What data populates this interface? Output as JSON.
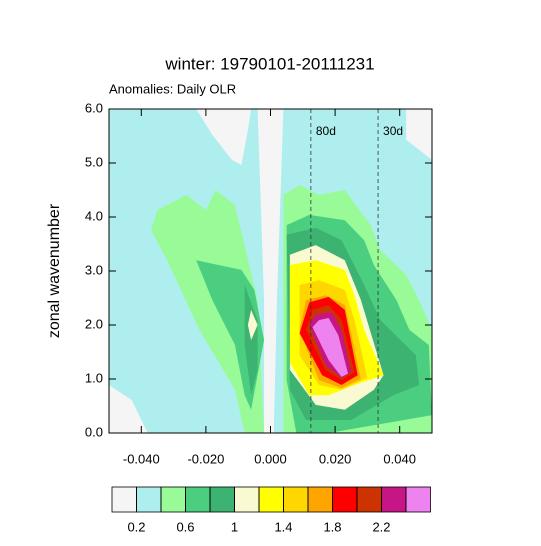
{
  "chart_data": {
    "type": "contour",
    "title": "winter: 19790101-20111231",
    "subtitle": "Anomalies: Daily OLR",
    "y_label": "zonal wavenumber",
    "xlim": [
      -0.05,
      0.05
    ],
    "ylim": [
      0,
      6
    ],
    "xticks": [
      {
        "value": -0.04,
        "label": "-0.040"
      },
      {
        "value": -0.02,
        "label": "-0.020"
      },
      {
        "value": 0,
        "label": "0.000"
      },
      {
        "value": 0.02,
        "label": "0.020"
      },
      {
        "value": 0.04,
        "label": "0.040"
      }
    ],
    "yticks": [
      {
        "value": 0,
        "label": "0.0"
      },
      {
        "value": 1,
        "label": "1.0"
      },
      {
        "value": 2,
        "label": "2.0"
      },
      {
        "value": 3,
        "label": "3.0"
      },
      {
        "value": 4,
        "label": "4.0"
      },
      {
        "value": 5,
        "label": "5.0"
      },
      {
        "value": 6,
        "label": "6.0"
      }
    ],
    "colors": [
      "#f5f5f5",
      "#afeeee",
      "#98fb98",
      "#4cce80",
      "#3cb371",
      "#fafad2",
      "#ffff00",
      "#ffd700",
      "#ffa500",
      "#ff0000",
      "#cc3300",
      "#c71585",
      "#ee82ee"
    ],
    "levels": [
      0.2,
      0.4,
      0.6,
      0.8,
      1,
      1.2,
      1.4,
      1.6,
      1.8,
      2,
      2.2,
      2.4
    ],
    "colorbar_ticks": [
      0.2,
      0.6,
      1,
      1.4,
      1.8,
      2.2
    ],
    "contours": [
      {
        "level": 1,
        "x": [
          -0.05,
          0.05,
          0.05,
          -0.05
        ],
        "y": [
          0,
          0,
          6,
          6
        ]
      },
      {
        "level": 0,
        "x": [
          -0.023,
          -0.018,
          -0.012,
          -0.009,
          -0.007,
          -0.006
        ],
        "y": [
          6,
          5.52,
          5.06,
          4.96,
          5.61,
          6
        ]
      },
      {
        "level": 0,
        "x": [
          -0.004,
          0.004,
          0.002,
          0.001,
          -0.002,
          -0.002
        ],
        "y": [
          6,
          6,
          2.46,
          0,
          0,
          2.46
        ]
      },
      {
        "level": 0,
        "x": [
          0.042,
          0.042,
          0.05,
          0.05
        ],
        "y": [
          6,
          5.43,
          5.06,
          6
        ]
      },
      {
        "level": 0,
        "x": [
          -0.05,
          -0.043,
          -0.038,
          -0.05
        ],
        "y": [
          0.89,
          0.61,
          0,
          0
        ]
      },
      {
        "level": 2,
        "x": [
          -0.035,
          -0.026,
          -0.02,
          -0.017,
          -0.011,
          -0.004,
          -0.002,
          -0.008,
          -0.011,
          -0.022,
          -0.032,
          -0.037
        ],
        "y": [
          4.13,
          4.41,
          4.13,
          4.5,
          4.22,
          2.46,
          0,
          0,
          0.8,
          1.91,
          3.2,
          3.76
        ]
      },
      {
        "level": 3,
        "x": [
          -0.023,
          -0.009,
          -0.005,
          -0.002,
          -0.006,
          -0.008,
          -0.011,
          -0.018
        ],
        "y": [
          3.2,
          3.02,
          2.65,
          1.72,
          0.43,
          0.7,
          1.63,
          2.46
        ]
      },
      {
        "level": 4,
        "x": [
          -0.008,
          -0.004,
          -0.004,
          -0.006,
          -0.008
        ],
        "y": [
          2.74,
          2.09,
          1.17,
          0.7,
          1.63
        ]
      },
      {
        "level": 5,
        "x": [
          -0.006,
          -0.004,
          -0.006,
          -0.007
        ],
        "y": [
          2.28,
          2,
          1.72,
          2
        ]
      },
      {
        "level": 2,
        "x": [
          0.004,
          0.009,
          0.015,
          0.023,
          0.031,
          0.034,
          0.042,
          0.046,
          0.05,
          0.05,
          0.004
        ],
        "y": [
          4.41,
          4.59,
          4.41,
          4.5,
          3.85,
          3.39,
          2.93,
          2.46,
          1.91,
          0,
          0
        ]
      },
      {
        "level": 3,
        "x": [
          0.005,
          0.012,
          0.023,
          0.029,
          0.032,
          0.039,
          0.043,
          0.049,
          0.05,
          0.018,
          0.008,
          0.005
        ],
        "y": [
          3.85,
          4.04,
          3.94,
          3.57,
          3.11,
          2.46,
          1.91,
          1.63,
          0.33,
          0,
          0,
          0.98
        ]
      },
      {
        "level": 4,
        "x": [
          0.005,
          0.014,
          0.022,
          0.029,
          0.034,
          0.045,
          0.046,
          0.038,
          0.025,
          0.011,
          0.006
        ],
        "y": [
          3.67,
          3.8,
          3.57,
          2.74,
          2.09,
          1.44,
          0.89,
          0.7,
          0.24,
          0.24,
          0.8
        ]
      },
      {
        "level": 5,
        "x": [
          0.006,
          0.014,
          0.023,
          0.028,
          0.035,
          0.032,
          0.023,
          0.014,
          0.006
        ],
        "y": [
          3.3,
          3.48,
          3.2,
          2.46,
          1.07,
          0.8,
          0.43,
          0.52,
          1.17
        ]
      },
      {
        "level": 6,
        "x": [
          0.006,
          0.014,
          0.023,
          0.026,
          0.029,
          0.035,
          0.026,
          0.018,
          0.012,
          0.006
        ],
        "y": [
          3.11,
          3.2,
          3.02,
          2.55,
          1.91,
          1.07,
          0.89,
          0.7,
          0.7,
          1.3
        ]
      },
      {
        "level": 7,
        "x": [
          0.009,
          0.015,
          0.023,
          0.026,
          0.03,
          0.022,
          0.015,
          0.009
        ],
        "y": [
          2.74,
          2.83,
          2.65,
          2.09,
          1.02,
          0.8,
          0.89,
          1.44
        ]
      },
      {
        "level": 8,
        "x": [
          0.011,
          0.017,
          0.023,
          0.028,
          0.022,
          0.015,
          0.009
        ],
        "y": [
          2.46,
          2.55,
          2.37,
          1,
          0.83,
          0.98,
          1.91
        ]
      },
      {
        "level": 9,
        "x": [
          0.012,
          0.018,
          0.023,
          0.027,
          0.022,
          0.016,
          0.009
        ],
        "y": [
          2.42,
          2.52,
          2.28,
          1.07,
          0.89,
          1.07,
          1.85
        ]
      },
      {
        "level": 10,
        "x": [
          0.013,
          0.018,
          0.022,
          0.026,
          0.022,
          0.017,
          0.011
        ],
        "y": [
          2.28,
          2.37,
          2.09,
          1.13,
          0.98,
          1.17,
          1.91
        ]
      },
      {
        "level": 11,
        "x": [
          0.014,
          0.019,
          0.022,
          0.025,
          0.022,
          0.017,
          0.012
        ],
        "y": [
          2.19,
          2.24,
          1.91,
          1.13,
          1.02,
          1.26,
          2
        ]
      },
      {
        "level": 12,
        "x": [
          0.015,
          0.018,
          0.021,
          0.024,
          0.022,
          0.018,
          0.013
        ],
        "y": [
          2.09,
          2.13,
          1.81,
          1.1,
          1.04,
          1.35,
          1.96
        ]
      }
    ],
    "reference_lines": [
      {
        "label": "80d",
        "x": 0.0125
      },
      {
        "label": "30d",
        "x": 0.0333
      }
    ]
  }
}
